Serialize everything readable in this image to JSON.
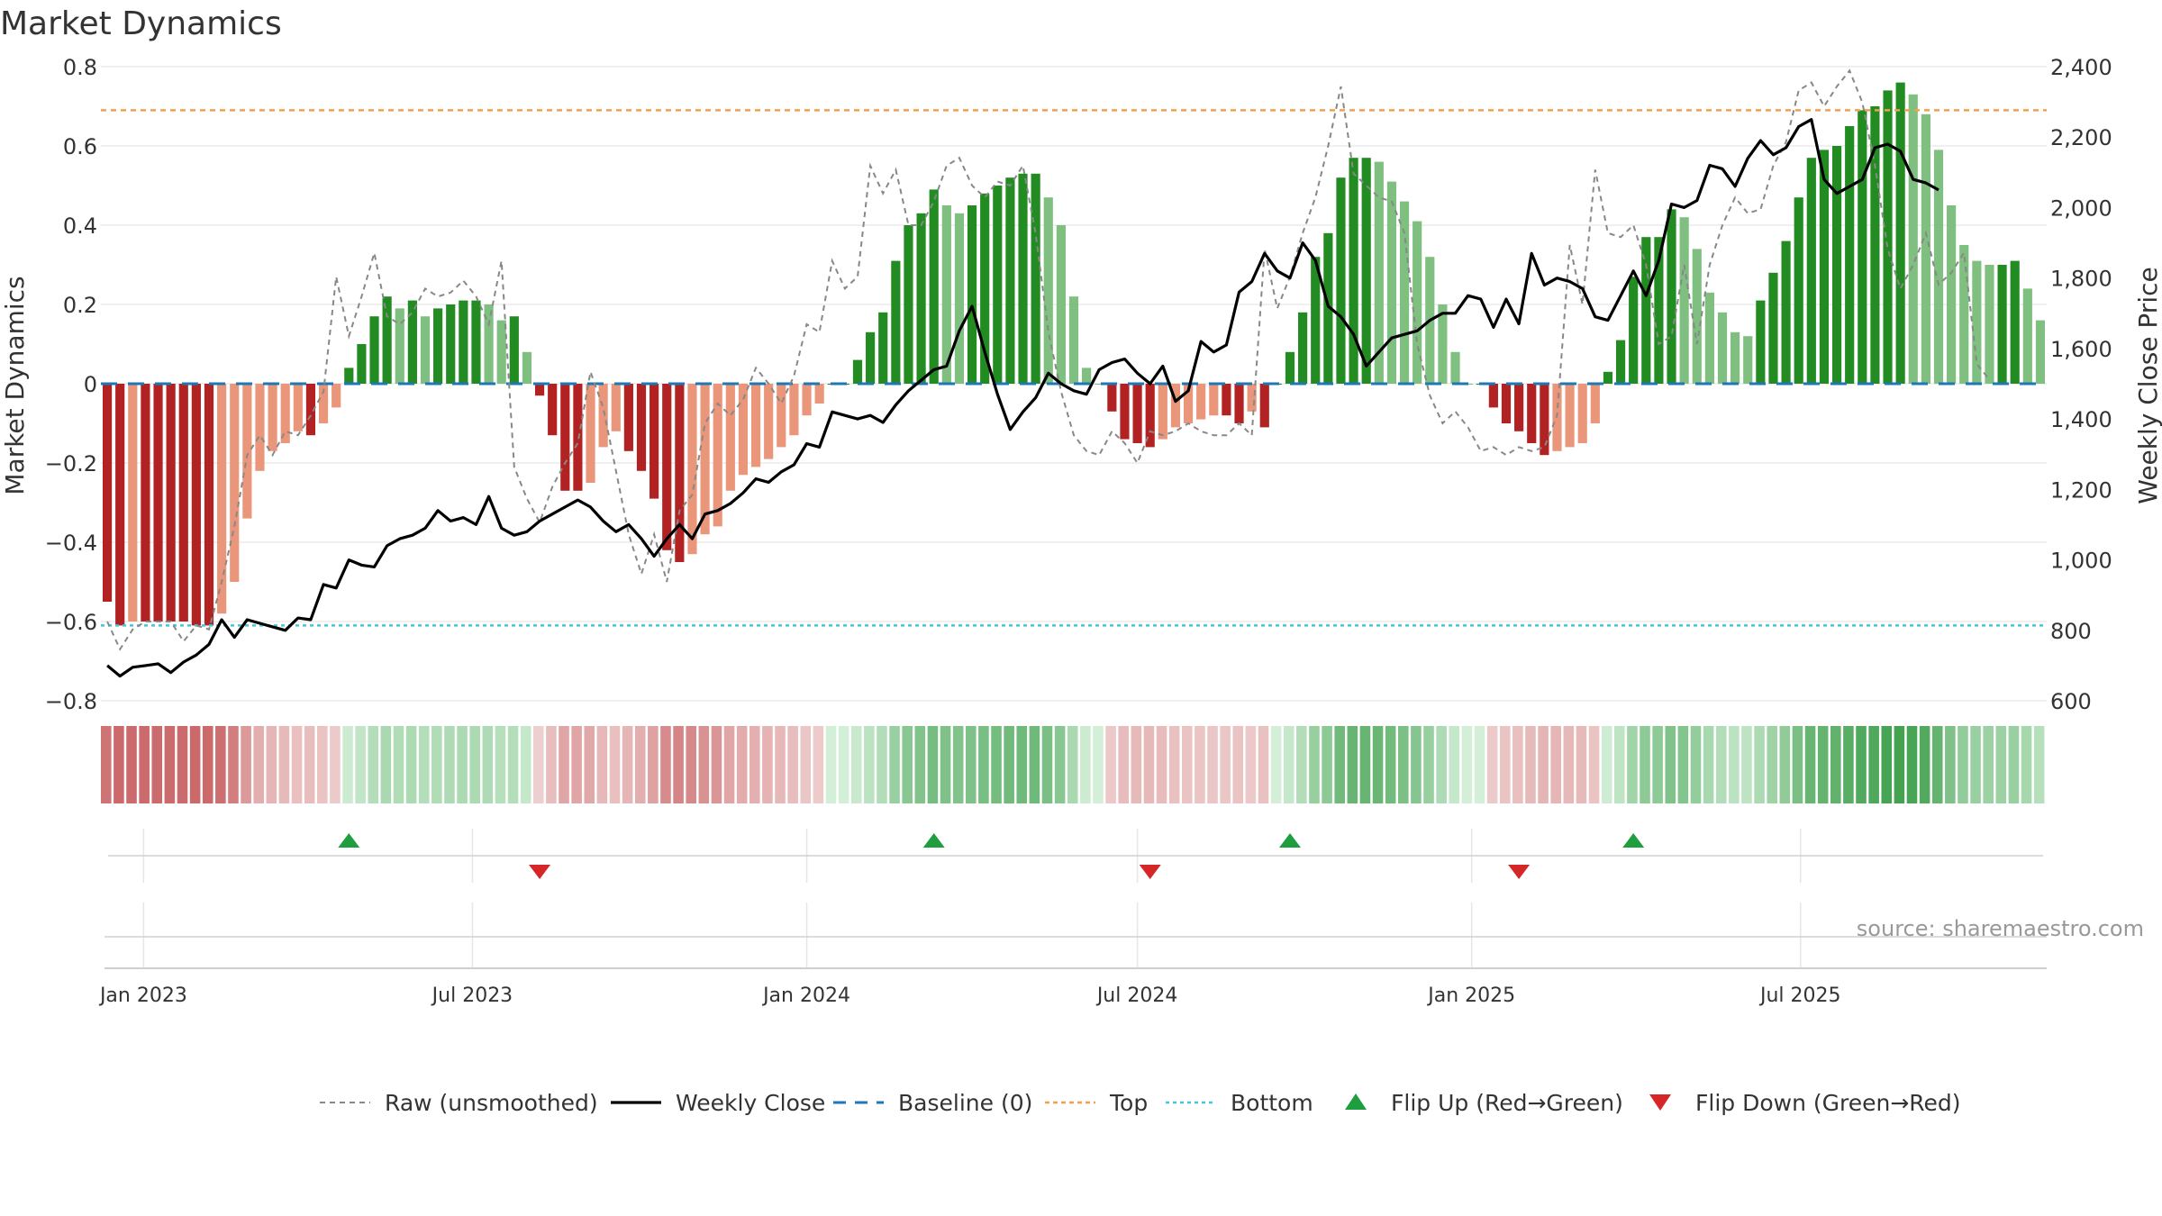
{
  "chart_data": {
    "type": "bar+line",
    "title": "Market Dynamics",
    "ylabel_left": "Market Dynamics",
    "ylabel_right": "Weekly Close Price",
    "ylim_left": [
      -0.8,
      0.8
    ],
    "ylim_right": [
      600,
      2400
    ],
    "yticks_left": [
      "0.8",
      "0.6",
      "0.4",
      "0.2",
      "0",
      "−0.2",
      "−0.4",
      "−0.6",
      "−0.8"
    ],
    "yticks_right": [
      "2,400",
      "2,200",
      "2,000",
      "1,800",
      "1,600",
      "1,400",
      "1,200",
      "1,000",
      "800",
      "600"
    ],
    "xticks": [
      "Jan 2023",
      "Jul 2023",
      "Jan 2024",
      "Jul 2024",
      "Jan 2025",
      "Jul 2025"
    ],
    "x_start": "2022-12-12",
    "interval_days": 7,
    "bars": [
      -0.55,
      -0.61,
      -0.6,
      -0.6,
      -0.6,
      -0.6,
      -0.6,
      -0.61,
      -0.61,
      -0.58,
      -0.5,
      -0.34,
      -0.22,
      -0.17,
      -0.15,
      -0.12,
      -0.13,
      -0.1,
      -0.06,
      0.04,
      0.1,
      0.17,
      0.22,
      0.19,
      0.21,
      0.17,
      0.19,
      0.2,
      0.21,
      0.21,
      0.2,
      0.16,
      0.17,
      0.08,
      -0.03,
      -0.13,
      -0.27,
      -0.27,
      -0.25,
      -0.16,
      -0.12,
      -0.17,
      -0.22,
      -0.29,
      -0.42,
      -0.45,
      -0.43,
      -0.38,
      -0.36,
      -0.27,
      -0.23,
      -0.21,
      -0.19,
      -0.16,
      -0.13,
      -0.08,
      -0.05,
      0.0,
      0.0,
      0.06,
      0.13,
      0.18,
      0.31,
      0.4,
      0.43,
      0.49,
      0.45,
      0.43,
      0.45,
      0.48,
      0.5,
      0.52,
      0.53,
      0.53,
      0.47,
      0.4,
      0.22,
      0.04,
      0.0,
      -0.07,
      -0.14,
      -0.15,
      -0.16,
      -0.14,
      -0.11,
      -0.1,
      -0.09,
      -0.08,
      -0.08,
      -0.1,
      -0.07,
      -0.11,
      0.0,
      0.08,
      0.18,
      0.32,
      0.38,
      0.52,
      0.57,
      0.57,
      0.56,
      0.51,
      0.46,
      0.41,
      0.32,
      0.2,
      0.08,
      0.0,
      0.0,
      -0.06,
      -0.1,
      -0.12,
      -0.15,
      -0.18,
      -0.17,
      -0.16,
      -0.15,
      -0.1,
      0.03,
      0.11,
      0.27,
      0.37,
      0.37,
      0.44,
      0.42,
      0.34,
      0.23,
      0.18,
      0.13,
      0.12,
      0.21,
      0.28,
      0.36,
      0.47,
      0.57,
      0.59,
      0.6,
      0.65,
      0.69,
      0.7,
      0.74,
      0.76,
      0.73,
      0.68,
      0.59,
      0.45,
      0.35,
      0.31,
      0.3,
      0.3,
      0.31,
      0.24,
      0.16
    ],
    "raw": [
      -0.6,
      -0.67,
      -0.62,
      -0.6,
      -0.6,
      -0.6,
      -0.65,
      -0.61,
      -0.62,
      -0.5,
      -0.36,
      -0.18,
      -0.13,
      -0.18,
      -0.12,
      -0.13,
      -0.08,
      -0.02,
      0.27,
      0.12,
      0.22,
      0.33,
      0.17,
      0.15,
      0.18,
      0.24,
      0.22,
      0.23,
      0.26,
      0.22,
      0.15,
      0.31,
      -0.21,
      -0.29,
      -0.35,
      -0.26,
      -0.2,
      -0.15,
      0.03,
      -0.06,
      -0.22,
      -0.38,
      -0.48,
      -0.38,
      -0.5,
      -0.32,
      -0.28,
      -0.1,
      -0.05,
      -0.08,
      -0.04,
      0.04,
      0.0,
      -0.05,
      0.02,
      0.15,
      0.13,
      0.31,
      0.24,
      0.27,
      0.55,
      0.48,
      0.54,
      0.4,
      0.4,
      0.46,
      0.55,
      0.57,
      0.5,
      0.47,
      0.51,
      0.5,
      0.55,
      0.38,
      0.13,
      -0.02,
      -0.13,
      -0.17,
      -0.18,
      -0.12,
      -0.15,
      -0.2,
      -0.12,
      -0.13,
      -0.12,
      -0.1,
      -0.12,
      -0.13,
      -0.13,
      -0.1,
      -0.13,
      0.34,
      0.19,
      0.27,
      0.38,
      0.47,
      0.6,
      0.75,
      0.53,
      0.5,
      0.47,
      0.46,
      0.38,
      0.1,
      -0.03,
      -0.1,
      -0.07,
      -0.11,
      -0.17,
      -0.16,
      -0.18,
      -0.16,
      -0.17,
      -0.16,
      -0.08,
      0.35,
      0.2,
      0.54,
      0.38,
      0.37,
      0.4,
      0.3,
      0.1,
      0.12,
      0.3,
      0.1,
      0.3,
      0.4,
      0.47,
      0.43,
      0.44,
      0.55,
      0.61,
      0.74,
      0.76,
      0.7,
      0.75,
      0.79,
      0.71,
      0.55,
      0.34,
      0.24,
      0.3,
      0.38,
      0.25,
      0.28,
      0.33,
      0.05,
      0.01
    ],
    "weekly_close": [
      700,
      670,
      695,
      700,
      705,
      680,
      710,
      730,
      760,
      830,
      780,
      830,
      820,
      810,
      800,
      835,
      830,
      930,
      920,
      1000,
      985,
      980,
      1040,
      1060,
      1070,
      1090,
      1140,
      1110,
      1120,
      1100,
      1180,
      1090,
      1070,
      1080,
      1110,
      1130,
      1150,
      1170,
      1150,
      1110,
      1080,
      1100,
      1060,
      1010,
      1060,
      1100,
      1060,
      1130,
      1140,
      1160,
      1190,
      1230,
      1220,
      1250,
      1270,
      1330,
      1320,
      1420,
      1410,
      1400,
      1410,
      1390,
      1440,
      1480,
      1510,
      1540,
      1550,
      1650,
      1720,
      1590,
      1470,
      1370,
      1420,
      1460,
      1530,
      1500,
      1480,
      1470,
      1540,
      1560,
      1570,
      1530,
      1500,
      1550,
      1450,
      1480,
      1620,
      1590,
      1610,
      1760,
      1790,
      1870,
      1820,
      1800,
      1900,
      1850,
      1720,
      1690,
      1640,
      1550,
      1590,
      1630,
      1640,
      1650,
      1680,
      1700,
      1700,
      1750,
      1740,
      1660,
      1740,
      1670,
      1870,
      1780,
      1800,
      1790,
      1770,
      1690,
      1680,
      1750,
      1820,
      1750,
      1850,
      2010,
      2000,
      2020,
      2120,
      2110,
      2060,
      2140,
      2190,
      2150,
      2170,
      2230,
      2250,
      2080,
      2040,
      2060,
      2080,
      2170,
      2180,
      2160,
      2080,
      2070,
      2050
    ],
    "top_line": 0.69,
    "bottom_line": -0.61,
    "baseline": 0,
    "flip_up_weeks": [
      19,
      65,
      93,
      120
    ],
    "flip_down_weeks": [
      34,
      82,
      111
    ],
    "colors": {
      "bear_strong": "#b22222",
      "bear_weak": "#e9967a",
      "bull_strong": "#228b22",
      "bull_weak": "#7fbf7f",
      "raw": "#888888",
      "close": "#000000",
      "baseline": "#1f77b4",
      "top": "#f0a050",
      "bottom": "#40c8d8",
      "flip_up": "#1e9e3e",
      "flip_down": "#d62728"
    },
    "legend": {
      "placement": "bottom-center",
      "items": [
        {
          "label": "Raw (unsmoothed)",
          "style": "raw"
        },
        {
          "label": "Weekly Close",
          "style": "close"
        },
        {
          "label": "Baseline (0)",
          "style": "baseline"
        },
        {
          "label": "Top",
          "style": "top"
        },
        {
          "label": "Bottom",
          "style": "bottom"
        },
        {
          "label": "Flip Up (Red→Green)",
          "style": "flip_up"
        },
        {
          "label": "Flip Down (Green→Red)",
          "style": "flip_down"
        }
      ]
    },
    "source": "source: sharemaestro.com",
    "grid": true
  }
}
